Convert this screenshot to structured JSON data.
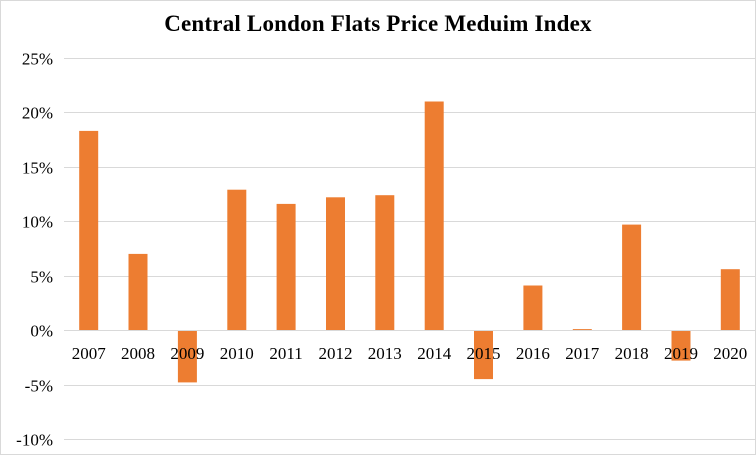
{
  "chart_data": {
    "type": "bar",
    "title": "Central London Flats Price Meduim Index",
    "xlabel": "",
    "ylabel": "",
    "categories": [
      "2007",
      "2008",
      "2009",
      "2010",
      "2011",
      "2012",
      "2013",
      "2014",
      "2015",
      "2016",
      "2017",
      "2018",
      "2019",
      "2020"
    ],
    "values": [
      18.3,
      7.0,
      -4.8,
      12.9,
      11.6,
      12.2,
      12.4,
      21.0,
      -4.5,
      4.1,
      0.1,
      9.7,
      -2.8,
      5.6
    ],
    "ylim": [
      -10,
      25
    ],
    "yticks": [
      -10,
      -5,
      0,
      5,
      10,
      15,
      20,
      25
    ],
    "ytick_labels": [
      "-10%",
      "-5%",
      "0%",
      "5%",
      "10%",
      "15%",
      "20%",
      "25%"
    ],
    "grid": true,
    "legend": "none",
    "bar_color": "#ED7D31",
    "grid_color": "#D9D9D9"
  }
}
